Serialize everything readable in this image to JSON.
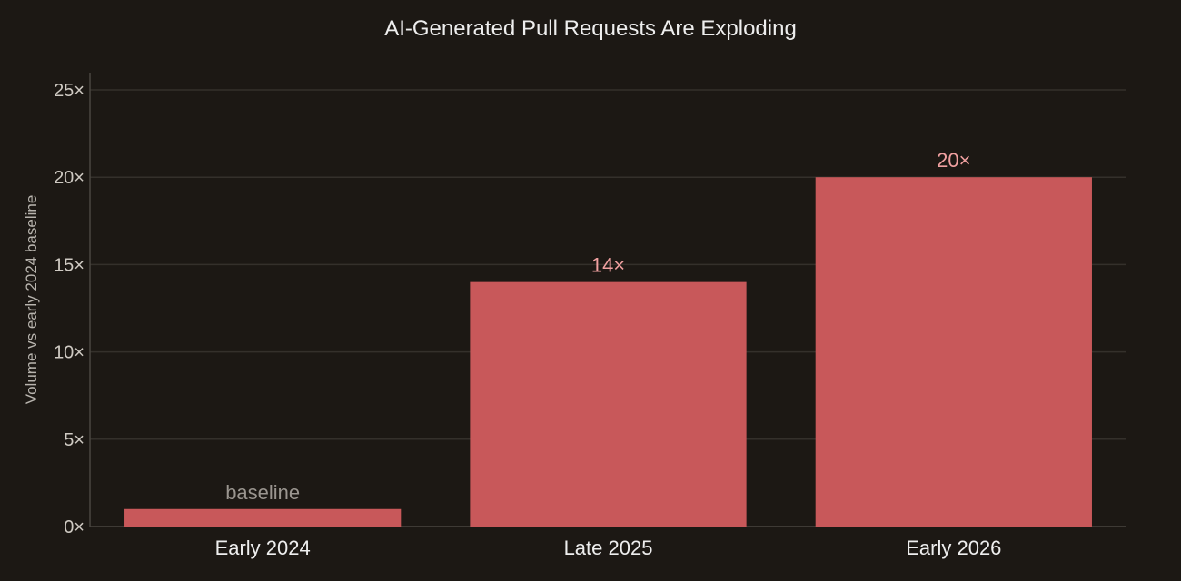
{
  "chart_data": {
    "type": "bar",
    "title": "AI-Generated Pull Requests Are Exploding",
    "xlabel": "",
    "ylabel": "Volume vs early 2024 baseline",
    "categories": [
      "Early 2024",
      "Late 2025",
      "Early 2026"
    ],
    "values": [
      1,
      14,
      20
    ],
    "data_labels": [
      "baseline",
      "14×",
      "20×"
    ],
    "ylim": [
      0,
      25
    ],
    "y_ticks": [
      0,
      5,
      10,
      15,
      20,
      25
    ],
    "y_tick_labels": [
      "0×",
      "5×",
      "10×",
      "15×",
      "20×",
      "25×"
    ],
    "grid": true,
    "legend": "none",
    "colors": {
      "background": "#1c1814",
      "bar": "#c8585a",
      "label_highlight": "#f0a0a0",
      "label_muted": "#9a958f",
      "grid": "#34302b",
      "text": "#eeeeee"
    }
  }
}
